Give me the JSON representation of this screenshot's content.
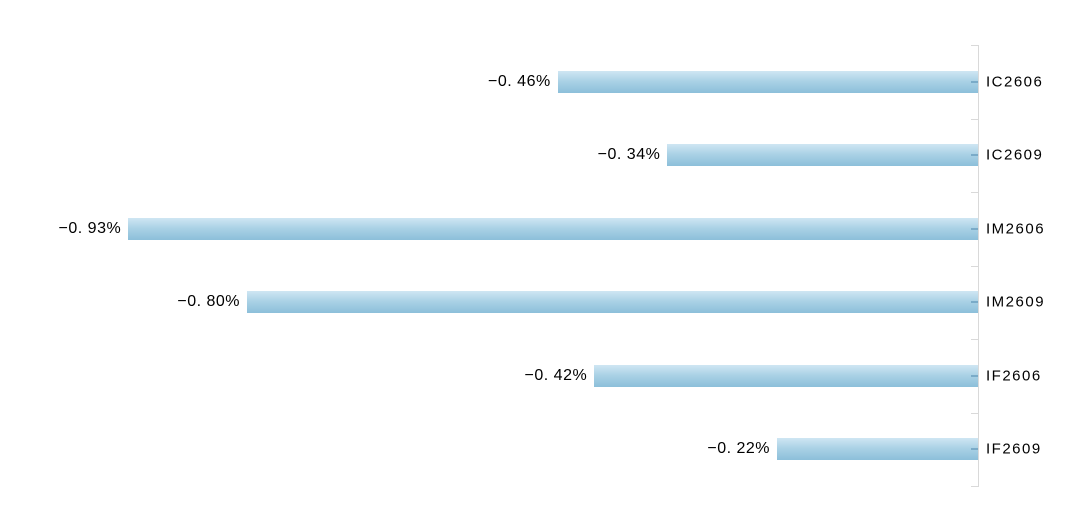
{
  "chart_data": {
    "type": "bar",
    "orientation": "horizontal",
    "title": "",
    "xlabel": "",
    "ylabel": "",
    "categories": [
      "IC2606",
      "IC2609",
      "IM2606",
      "IM2609",
      "IF2606",
      "IF2609"
    ],
    "values": [
      -0.46,
      -0.34,
      -0.93,
      -0.8,
      -0.42,
      -0.22
    ],
    "value_labels": [
      "−0. 46%",
      "−0. 34%",
      "−0. 93%",
      "−0. 80%",
      "−0. 42%",
      "−0. 22%"
    ],
    "value_format": "percent",
    "xlim": [
      -1.0,
      0
    ],
    "axis_position": "right",
    "grid": false,
    "legend": false,
    "data_labels": "outside-end",
    "colors": {
      "bar_gradient_top": "#cfe6f3",
      "bar_gradient_mid": "#a9d1e5",
      "bar_gradient_bottom": "#8cbfda",
      "bar_axis_tick_overlap": "#7aabc8",
      "axis": "#d9d9d9",
      "text": "#000000",
      "background": "#ffffff"
    }
  }
}
